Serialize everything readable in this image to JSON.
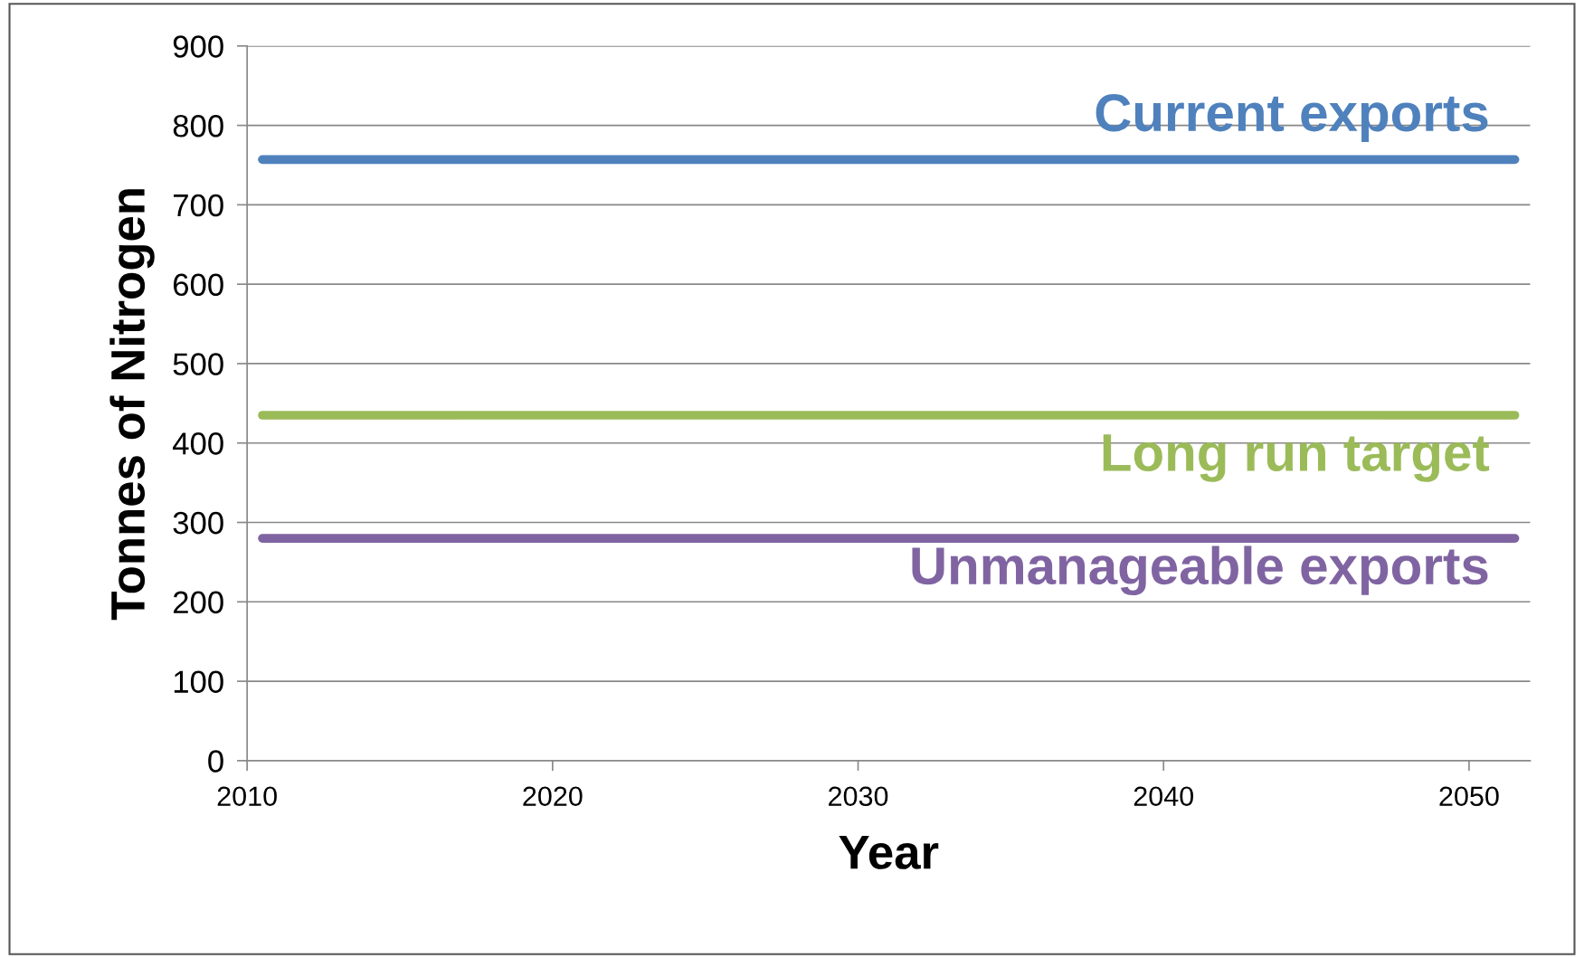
{
  "chart_data": {
    "type": "line",
    "xlabel": "Year",
    "ylabel": "Tonnes of Nitrogen",
    "x": [
      2010.5,
      2051.5
    ],
    "series": [
      {
        "name": "Current exports",
        "color": "#4f81bd",
        "values": [
          757,
          757
        ]
      },
      {
        "name": "Long run target",
        "color": "#9bbb59",
        "values": [
          435,
          435
        ]
      },
      {
        "name": "Unmanageable exports",
        "color": "#8064a2",
        "values": [
          280,
          280
        ]
      }
    ],
    "xlim": [
      2010,
      2052
    ],
    "xticks": [
      2010,
      2020,
      2030,
      2040,
      2050
    ],
    "ylim": [
      0,
      900
    ],
    "yticks": [
      0,
      100,
      200,
      300,
      400,
      500,
      600,
      700,
      800,
      900
    ],
    "grid": "y",
    "legend": false,
    "marker": "none",
    "line_style": "solid"
  }
}
